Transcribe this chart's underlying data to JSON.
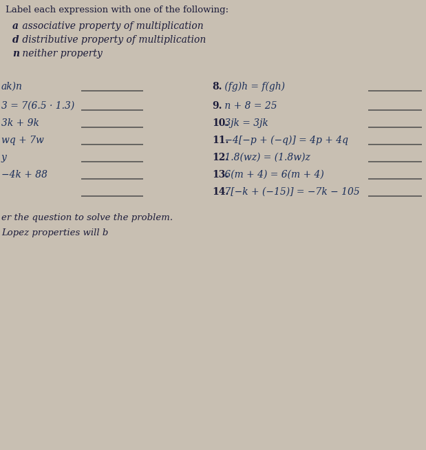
{
  "bg_color": "#c8bfb2",
  "title_line": "Label each expression with one of the following:",
  "legend": [
    {
      "bold": "a",
      "rest": " associative property of multiplication"
    },
    {
      "bold": "d",
      "rest": " distributive property of multiplication"
    },
    {
      "bold": "n",
      "rest": " neither property"
    }
  ],
  "left_items": [
    {
      "text": "ak)n"
    },
    {
      "text": "3 = 7(6.5 · 1.3)"
    },
    {
      "text": "3k + 9k"
    },
    {
      "text": "wq + 7w"
    },
    {
      "text": "y"
    },
    {
      "text": "−4k + 88"
    },
    {
      "text": ""
    }
  ],
  "right_items": [
    {
      "num": "8.",
      "expr": " (fg)h = f(gh)"
    },
    {
      "num": "9.",
      "expr": " n + 8 = 25"
    },
    {
      "num": "10.",
      "expr": " 3jk = 3jk"
    },
    {
      "num": "11.",
      "expr": " −4[−p + (−q)] = 4p + 4q"
    },
    {
      "num": "12.",
      "expr": " 1.8(wz) = (1.8w)z"
    },
    {
      "num": "13.",
      "expr": " 6(m + 4) = 6(m + 4)"
    },
    {
      "num": "14.",
      "expr": " 7[−k + (−15)] = −7k − 105"
    }
  ],
  "footer1": "er the question to solve the problem.",
  "footer2": "Lopez properties will b",
  "text_color": "#1c1c3a",
  "expr_color": "#1a2e5a",
  "line_color": "#4a4a4a"
}
